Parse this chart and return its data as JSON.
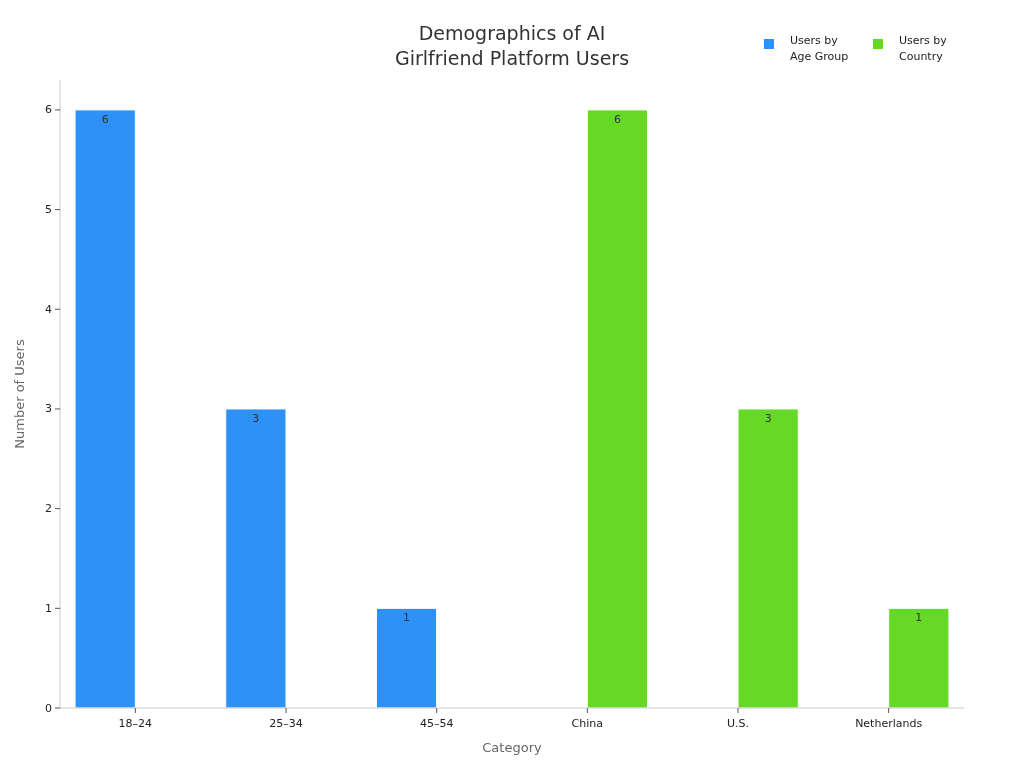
{
  "chart_data": {
    "type": "bar",
    "title": "Demographics of AI\nGirlfriend Platform Users",
    "xlabel": "Category",
    "ylabel": "Number of Users",
    "categories": [
      "18–24",
      "25–34",
      "45–54",
      "China",
      "U.S.",
      "Netherlands"
    ],
    "series": [
      {
        "name": "Users by\nAge Group",
        "color": "#2e91f8",
        "values": [
          6,
          3,
          1,
          null,
          null,
          null
        ]
      },
      {
        "name": "Users by\nCountry",
        "color": "#66d926",
        "values": [
          null,
          null,
          null,
          6,
          3,
          1
        ]
      }
    ],
    "ylim": [
      0,
      6.3
    ],
    "yticks": [
      0,
      1,
      2,
      3,
      4,
      5,
      6
    ],
    "grid": false,
    "legend": "top right",
    "data_labels": true
  }
}
